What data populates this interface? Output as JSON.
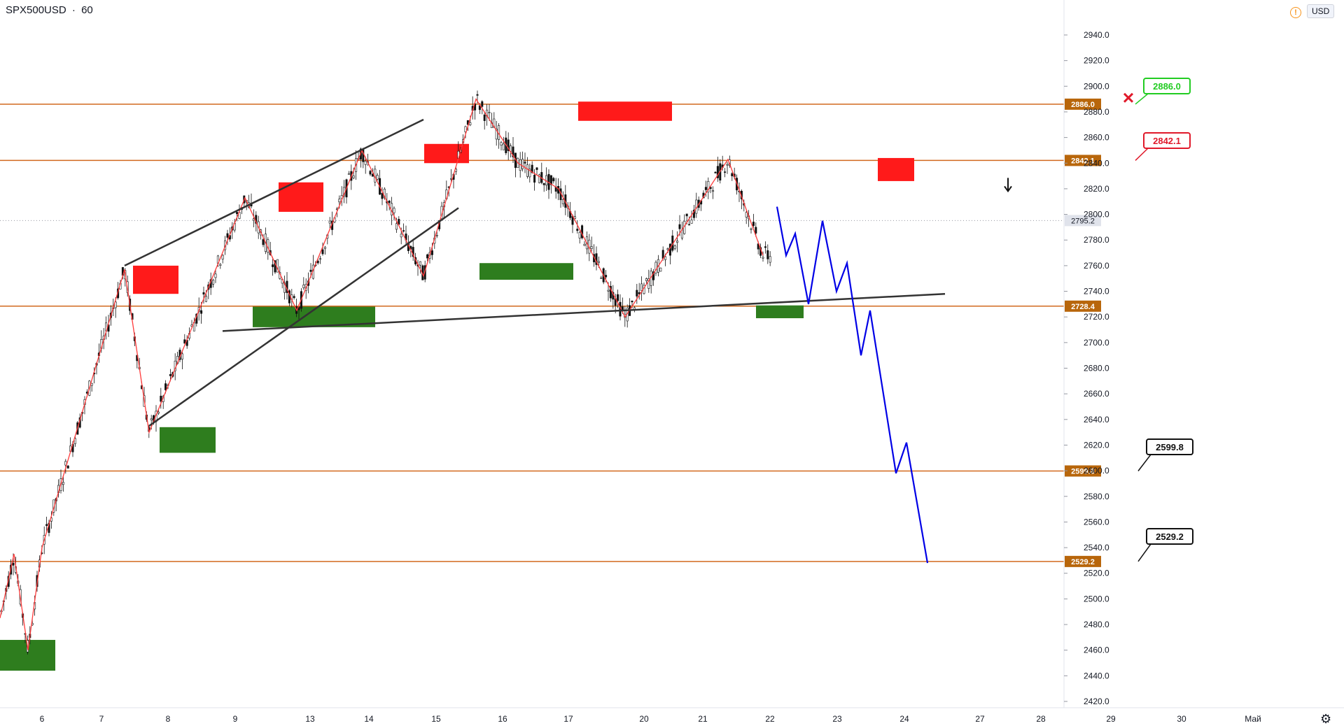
{
  "header": {
    "symbol": "SPX500USD",
    "separator": "·",
    "interval": "60"
  },
  "currency_label": "USD",
  "colors": {
    "level_line": "#d2691e",
    "level_tag_bg": "#b8660b",
    "resistance_box": "#ff1a1a",
    "support_box": "#2e7d1e",
    "zigzag": "#ff3b3b",
    "trendline": "#333333",
    "projection": "#0000e6",
    "candle": "#111111",
    "label_green": "#22cc22",
    "label_red": "#e0192a",
    "label_black": "#111111"
  },
  "chart_data": {
    "type": "line",
    "title": "",
    "y_axis": {
      "min": 2400,
      "max": 2960,
      "side": "right",
      "ticks": [
        2420,
        2440,
        2460,
        2480,
        2500,
        2520,
        2540,
        2560,
        2580,
        2600,
        2620,
        2640,
        2660,
        2680,
        2700,
        2720,
        2740,
        2760,
        2780,
        2800,
        2820,
        2840,
        2860,
        2880,
        2900,
        2920,
        2940
      ]
    },
    "x_axis": {
      "labels": [
        "6",
        "7",
        "8",
        "9",
        "13",
        "14",
        "15",
        "16",
        "17",
        "20",
        "21",
        "22",
        "23",
        "24",
        "27",
        "28",
        "29",
        "30",
        "Май"
      ]
    },
    "current_price": 2795.2,
    "horizontal_levels": [
      2886.0,
      2842.1,
      2728.4,
      2599.8,
      2529.2
    ],
    "price_labels": [
      {
        "text": "2886.0",
        "color": "green"
      },
      {
        "text": "2842.1",
        "color": "red"
      },
      {
        "text": "2599.8",
        "color": "black"
      },
      {
        "text": "2529.2",
        "color": "black"
      }
    ],
    "resistance_zones": [
      {
        "from": "8",
        "price_low": 2738,
        "price_high": 2760
      },
      {
        "from": "13",
        "price_low": 2802,
        "price_high": 2825
      },
      {
        "from": "15",
        "price_low": 2840,
        "price_high": 2855
      },
      {
        "from": "17",
        "price_low": 2873,
        "price_high": 2888
      },
      {
        "from": "24",
        "price_low": 2826,
        "price_high": 2844
      }
    ],
    "support_zones": [
      {
        "from": "6",
        "price_low": 2444,
        "price_high": 2468
      },
      {
        "from": "8",
        "price_low": 2614,
        "price_high": 2634
      },
      {
        "from": "9",
        "price_low": 2712,
        "price_high": 2728
      },
      {
        "from": "16",
        "price_low": 2749,
        "price_high": 2762
      },
      {
        "from": "22",
        "price_low": 2719,
        "price_high": 2729
      }
    ],
    "zigzag": [
      [
        0,
        2485
      ],
      [
        20,
        2535
      ],
      [
        40,
        2460
      ],
      [
        60,
        2540
      ],
      [
        178,
        2757
      ],
      [
        213,
        2630
      ],
      [
        350,
        2813
      ],
      [
        424,
        2725
      ],
      [
        517,
        2850
      ],
      [
        605,
        2752
      ],
      [
        680,
        2890
      ],
      [
        740,
        2840
      ],
      [
        798,
        2820
      ],
      [
        893,
        2720
      ],
      [
        1040,
        2843
      ],
      [
        1090,
        2768
      ]
    ],
    "projection": [
      [
        1110,
        2806
      ],
      [
        1123,
        2768
      ],
      [
        1136,
        2785
      ],
      [
        1155,
        2730
      ],
      [
        1175,
        2795
      ],
      [
        1195,
        2740
      ],
      [
        1210,
        2762
      ],
      [
        1230,
        2690
      ],
      [
        1243,
        2725
      ],
      [
        1280,
        2598
      ],
      [
        1295,
        2622
      ],
      [
        1325,
        2528
      ]
    ],
    "trendlines": [
      [
        [
          178,
          2760
        ],
        [
          605,
          2874
        ]
      ],
      [
        [
          213,
          2635
        ],
        [
          655,
          2805
        ]
      ],
      [
        [
          318,
          2709
        ],
        [
          1350,
          2738
        ]
      ]
    ]
  }
}
